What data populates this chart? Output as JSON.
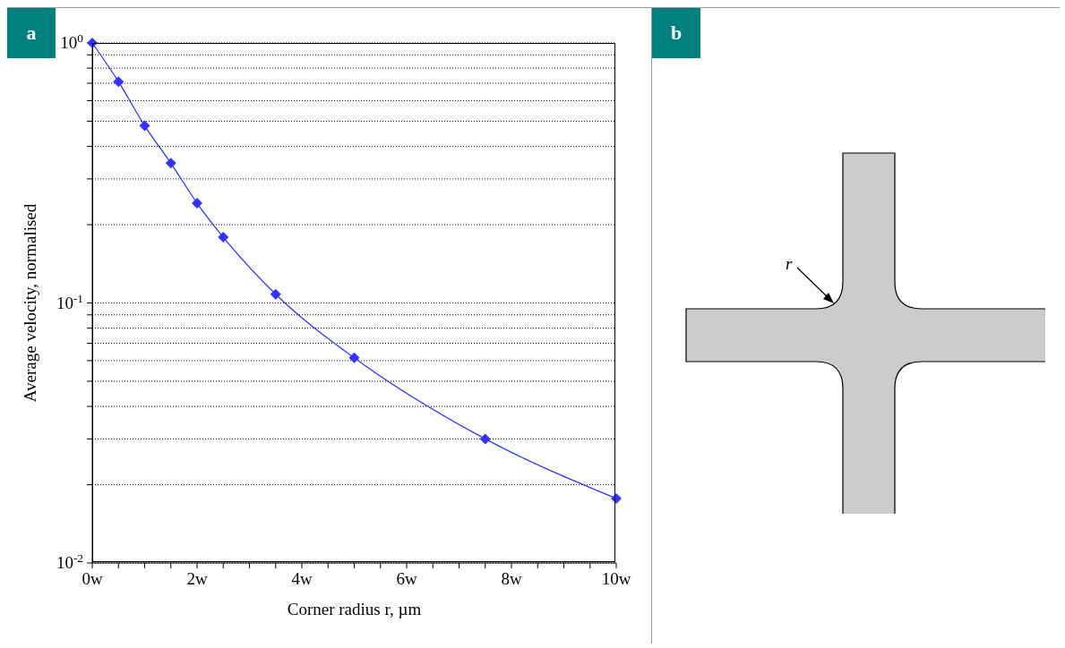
{
  "chart_data": {
    "type": "line",
    "xlabel": "Corner radius r, µm",
    "ylabel": "Average velocity, normalised",
    "annotations": [
      "a",
      "b",
      "r"
    ],
    "x": [
      0,
      0.5,
      1,
      1.5,
      2,
      2.5,
      3.5,
      5,
      7.5,
      10
    ],
    "series": [
      {
        "color": "#3333ff",
        "values": [
          1,
          0.71,
          0.48,
          0.345,
          0.242,
          0.179,
          0.108,
          0.0615,
          0.03,
          0.0177
        ]
      }
    ],
    "log": "y",
    "xlim": [
      0,
      10
    ],
    "ylim": [
      0.01,
      1
    ],
    "xticks": [
      {
        "value": 0,
        "label": "0w"
      },
      {
        "value": 0.5,
        "label": null
      },
      {
        "value": 1,
        "label": null
      },
      {
        "value": 1.5,
        "label": null
      },
      {
        "value": 2,
        "label": "2w"
      },
      {
        "value": 2.5,
        "label": null
      },
      {
        "value": 3,
        "label": null
      },
      {
        "value": 3.5,
        "label": null
      },
      {
        "value": 4,
        "label": "4w"
      },
      {
        "value": 4.5,
        "label": null
      },
      {
        "value": 5,
        "label": null
      },
      {
        "value": 5.5,
        "label": null
      },
      {
        "value": 6,
        "label": "6w"
      },
      {
        "value": 6.5,
        "label": null
      },
      {
        "value": 7,
        "label": null
      },
      {
        "value": 7.5,
        "label": null
      },
      {
        "value": 8,
        "label": "8w"
      },
      {
        "value": 8.5,
        "label": null
      },
      {
        "value": 9,
        "label": null
      },
      {
        "value": 9.5,
        "label": null
      },
      {
        "value": 10,
        "label": "10w"
      }
    ],
    "yticks": [
      {
        "value": 0.01,
        "label": "10$^{-2}$"
      },
      {
        "value": 0.02,
        "label": null
      },
      {
        "value": 0.03,
        "label": null
      },
      {
        "value": 0.04,
        "label": null
      },
      {
        "value": 0.05,
        "label": null
      },
      {
        "value": 0.06,
        "label": null
      },
      {
        "value": 0.07,
        "label": null
      },
      {
        "value": 0.08,
        "label": null
      },
      {
        "value": 0.09,
        "label": null
      },
      {
        "value": 0.1,
        "label": "10$^{-1}$"
      },
      {
        "value": 0.2,
        "label": null
      },
      {
        "value": 0.3,
        "label": null
      },
      {
        "value": 0.4,
        "label": null
      },
      {
        "value": 0.5,
        "label": null
      },
      {
        "value": 0.6,
        "label": null
      },
      {
        "value": 0.7,
        "label": null
      },
      {
        "value": 0.8,
        "label": null
      },
      {
        "value": 0.9,
        "label": null
      },
      {
        "value": 1,
        "label": "10$^{0}$"
      }
    ],
    "grid": "y",
    "marker": "diamond",
    "line_style": "solid"
  }
}
